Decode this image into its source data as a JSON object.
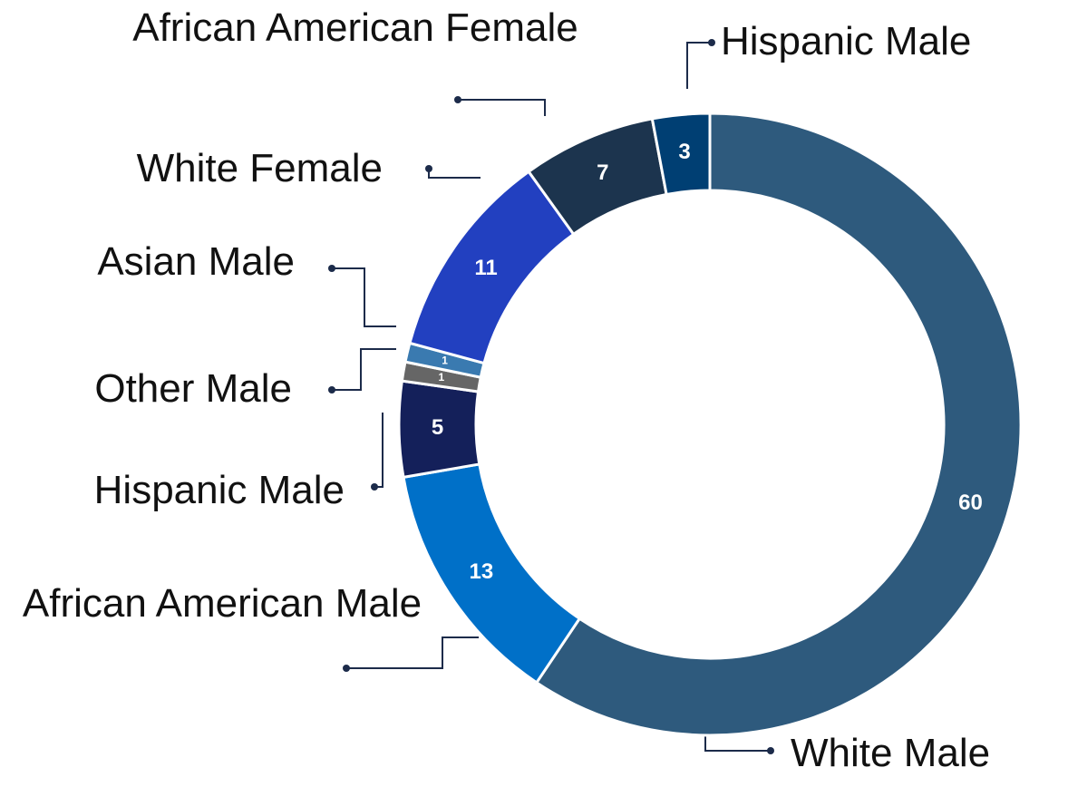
{
  "chart_data": {
    "type": "donut",
    "categories": [
      "White Male",
      "African American Male",
      "Hispanic Male",
      "Other Male",
      "Asian Male",
      "White Female",
      "African American Female",
      "Hispanic Male"
    ],
    "values": [
      60,
      13,
      5,
      1,
      1,
      11,
      7,
      3
    ],
    "colors": [
      "#2e5a7d",
      "#0070c8",
      "#14205a",
      "#666666",
      "#3a7ab0",
      "#2240c0",
      "#1c344e",
      "#003f73"
    ]
  }
}
